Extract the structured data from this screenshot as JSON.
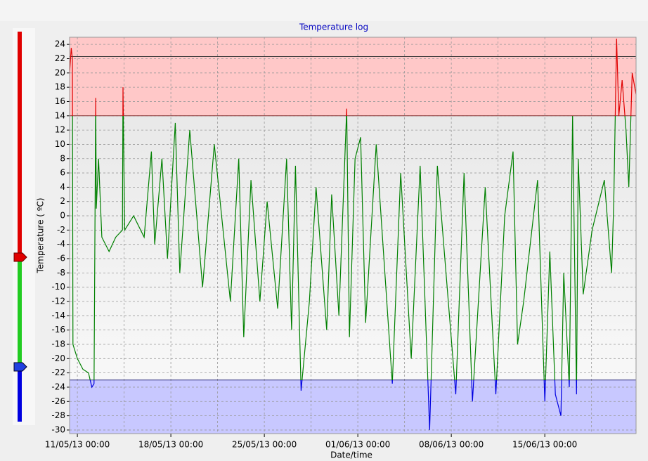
{
  "chart_data": {
    "type": "line",
    "title": "Temperature log",
    "xlabel": "Date/time",
    "ylabel": "Temperature ( ºC)",
    "x": [
      "2013-05-10 10:00",
      "2013-05-10 13:00",
      "2013-05-10 15:00",
      "2013-05-10 16:00",
      "2013-05-11 00:00",
      "2013-05-11 10:00",
      "2013-05-11 20:00",
      "2013-05-12 02:00",
      "2013-05-12 06:00",
      "2013-05-12 09:00",
      "2013-05-12 10:00",
      "2013-05-12 14:00",
      "2013-05-12 20:00",
      "2013-05-13 09:00",
      "2013-05-13 21:00",
      "2013-05-14 09:00",
      "2013-05-14 10:00",
      "2013-05-14 13:00",
      "2013-05-15 05:00",
      "2013-05-16 00:00",
      "2013-05-16 13:00",
      "2013-05-16 19:00",
      "2013-05-17 08:00",
      "2013-05-17 18:00",
      "2013-05-18 08:00",
      "2013-05-18 16:00",
      "2013-05-19 10:00",
      "2013-05-20 09:00",
      "2013-05-21 06:00",
      "2013-05-22 11:00",
      "2013-05-23 02:00",
      "2013-05-23 11:00",
      "2013-05-24 00:00",
      "2013-05-24 16:00",
      "2013-05-25 05:00",
      "2013-05-26 00:00",
      "2013-05-26 16:00",
      "2013-05-27 01:00",
      "2013-05-27 08:00",
      "2013-05-27 18:00",
      "2013-05-28 09:00",
      "2013-05-28 21:00",
      "2013-05-29 16:00",
      "2013-05-30 01:00",
      "2013-05-30 14:00",
      "2013-05-31 04:00",
      "2013-05-31 09:00",
      "2013-05-31 19:00",
      "2013-06-01 05:00",
      "2013-06-01 14:00",
      "2013-06-02 09:00",
      "2013-06-03 14:00",
      "2013-06-04 05:00",
      "2013-06-05 00:00",
      "2013-06-05 16:00",
      "2013-06-06 09:00",
      "2013-06-06 23:00",
      "2013-06-08 08:00",
      "2013-06-08 23:00",
      "2013-06-09 14:00",
      "2013-06-10 13:00",
      "2013-06-11 08:00",
      "2013-06-12 00:00",
      "2013-06-12 15:00",
      "2013-06-12 23:00",
      "2013-06-13 10:00",
      "2013-06-14 11:00",
      "2013-06-15 00:00",
      "2013-06-15 09:00",
      "2013-06-15 19:00",
      "2013-06-16 05:00",
      "2013-06-16 10:00",
      "2013-06-16 20:00",
      "2013-06-17 02:00",
      "2013-06-17 09:00",
      "2013-06-17 12:00",
      "2013-06-17 21:00",
      "2013-06-18 13:00",
      "2013-06-19 11:00",
      "2013-06-20 00:00",
      "2013-06-20 04:00",
      "2013-06-20 09:00",
      "2013-06-20 13:00",
      "2013-06-20 19:00",
      "2013-06-21 02:00",
      "2013-06-21 07:00",
      "2013-06-21 13:00",
      "2013-06-21 20:00"
    ],
    "values": [
      20,
      23.5,
      22,
      -18,
      -20,
      -21.5,
      -22,
      -24,
      -23.5,
      16.5,
      1,
      8,
      -3,
      -5,
      -3,
      -2,
      18,
      -2,
      0,
      -3,
      9,
      -4,
      8,
      -6,
      13,
      -8,
      12,
      -10,
      10,
      -12,
      8,
      -17,
      5,
      -12,
      2,
      -13,
      8,
      -16,
      7,
      -24.5,
      -12,
      4,
      -16,
      3,
      -14,
      15,
      -17,
      8,
      11,
      -15,
      10,
      -23.5,
      6,
      -20,
      7,
      -30,
      7,
      -25,
      6,
      -26,
      4,
      -25,
      0,
      9,
      -18,
      -12,
      5,
      -26,
      -5,
      -25,
      -28,
      -8,
      -24,
      14,
      -25,
      8,
      -11,
      -2,
      5,
      -8,
      2,
      24.8,
      14,
      19,
      12,
      4,
      20,
      17
    ],
    "colors": {
      "above": "#e00000",
      "normal": "#008000",
      "below": "#0000e0"
    },
    "upper_limit": 14,
    "lower_limit": -23,
    "reference_line": 22.3,
    "band_colors": {
      "above": "#ffc8c8",
      "below": "#c8c8ff"
    },
    "xlim": [
      "2013-05-10 10:00",
      "2013-06-21 20:00"
    ],
    "xticks": [
      {
        "value": "2013-05-11 00:00",
        "label": "11/05/13 00:00"
      },
      {
        "value": "2013-05-18 00:00",
        "label": "18/05/13 00:00"
      },
      {
        "value": "2013-05-25 00:00",
        "label": "25/05/13 00:00"
      },
      {
        "value": "2013-06-01 00:00",
        "label": "01/06/13 00:00"
      },
      {
        "value": "2013-06-08 00:00",
        "label": "08/06/13 00:00"
      },
      {
        "value": "2013-06-15 00:00",
        "label": "15/06/13 00:00"
      }
    ],
    "x_grid": [
      "2013-05-11 00:00",
      "2013-05-14 12:00",
      "2013-05-18 00:00",
      "2013-05-21 12:00",
      "2013-05-25 00:00",
      "2013-05-28 12:00",
      "2013-06-01 00:00",
      "2013-06-04 12:00",
      "2013-06-08 00:00",
      "2013-06-11 12:00",
      "2013-06-15 00:00",
      "2013-06-18 12:00"
    ],
    "ylim": [
      -30.5,
      25
    ],
    "yticks": [
      -30,
      -28,
      -26,
      -24,
      -22,
      -20,
      -18,
      -16,
      -14,
      -12,
      -10,
      -8,
      -6,
      -4,
      -2,
      0,
      2,
      4,
      6,
      8,
      10,
      12,
      14,
      16,
      18,
      20,
      22,
      24
    ],
    "grid": true
  }
}
